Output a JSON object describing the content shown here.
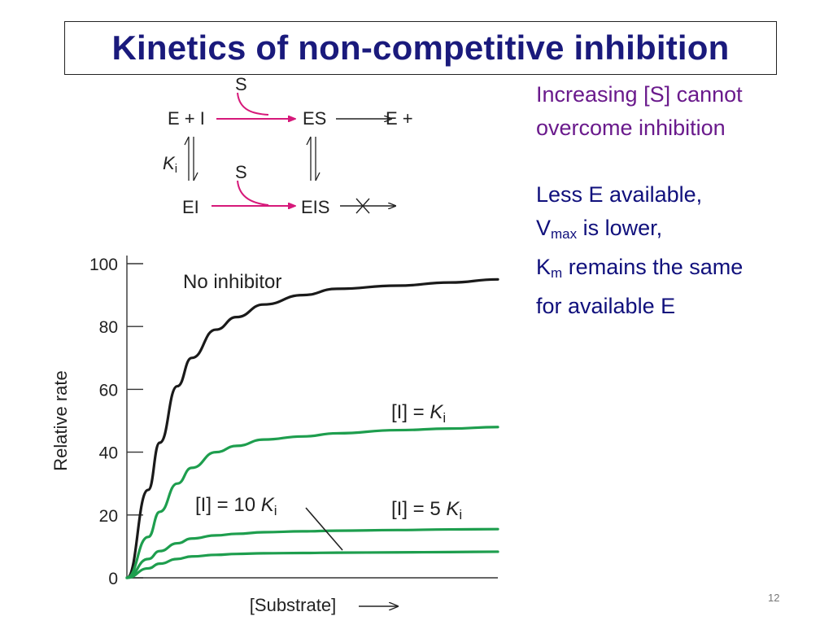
{
  "slide": {
    "title": "Kinetics of non-competitive inhibition",
    "page_number": "12"
  },
  "scheme": {
    "substrate_top": "S",
    "substrate_bottom": "S",
    "e_plus_i": "E + I",
    "es": "ES",
    "e_plus_p": "E + P",
    "ki_label": "K",
    "ki_sub": "i",
    "ei": "EI",
    "eis": "EIS",
    "colors": {
      "substrate_arrow": "#d6197a",
      "text": "#222222"
    }
  },
  "notes": {
    "line1": "Increasing [S] cannot",
    "line2": "overcome inhibition",
    "line3": "Less E available,",
    "vmax_main": "V",
    "vmax_sub": "max",
    "vmax_rest": " is lower,",
    "km_main": "K",
    "km_sub": "m",
    "km_rest": " remains the same",
    "line6": "for available E",
    "colors": {
      "first_block": "#6a1a8c",
      "second_block": "#10107c"
    }
  },
  "chart_data": {
    "type": "line",
    "xlabel": "[Substrate]",
    "ylabel": "Relative rate",
    "ylim": [
      0,
      100
    ],
    "yticks": [
      0,
      20,
      40,
      60,
      80,
      100
    ],
    "x_axis_values_shown": false,
    "grid": false,
    "x": [
      0,
      0.5,
      1,
      2,
      3,
      5,
      7,
      10,
      15,
      20,
      30,
      40,
      50
    ],
    "series": [
      {
        "name": "No inhibitor",
        "color": "#1a1a1a",
        "label_position": "top-left",
        "values": [
          0,
          28,
          43,
          61,
          70,
          79,
          83,
          87,
          90,
          92,
          93,
          94,
          95
        ]
      },
      {
        "name": "[I] = K",
        "name_sub": "i",
        "color": "#1e9e4e",
        "label_position": "right",
        "values": [
          0,
          13,
          21,
          30,
          35,
          40,
          42,
          44,
          45,
          46,
          47,
          47.5,
          48
        ]
      },
      {
        "name": "[I] = 5 K",
        "name_sub": "i",
        "color": "#1e9e4e",
        "label_position": "right",
        "values": [
          0,
          6,
          8.5,
          11,
          12.5,
          13.5,
          14,
          14.5,
          14.8,
          15,
          15.2,
          15.4,
          15.5
        ]
      },
      {
        "name": "[I] = 10 K",
        "name_sub": "i",
        "color": "#1e9e4e",
        "label_position": "left-with-leader",
        "values": [
          0,
          3,
          4.5,
          6,
          6.8,
          7.3,
          7.6,
          7.8,
          7.9,
          8,
          8.1,
          8.2,
          8.3
        ]
      }
    ],
    "axis_color": "#333333"
  }
}
